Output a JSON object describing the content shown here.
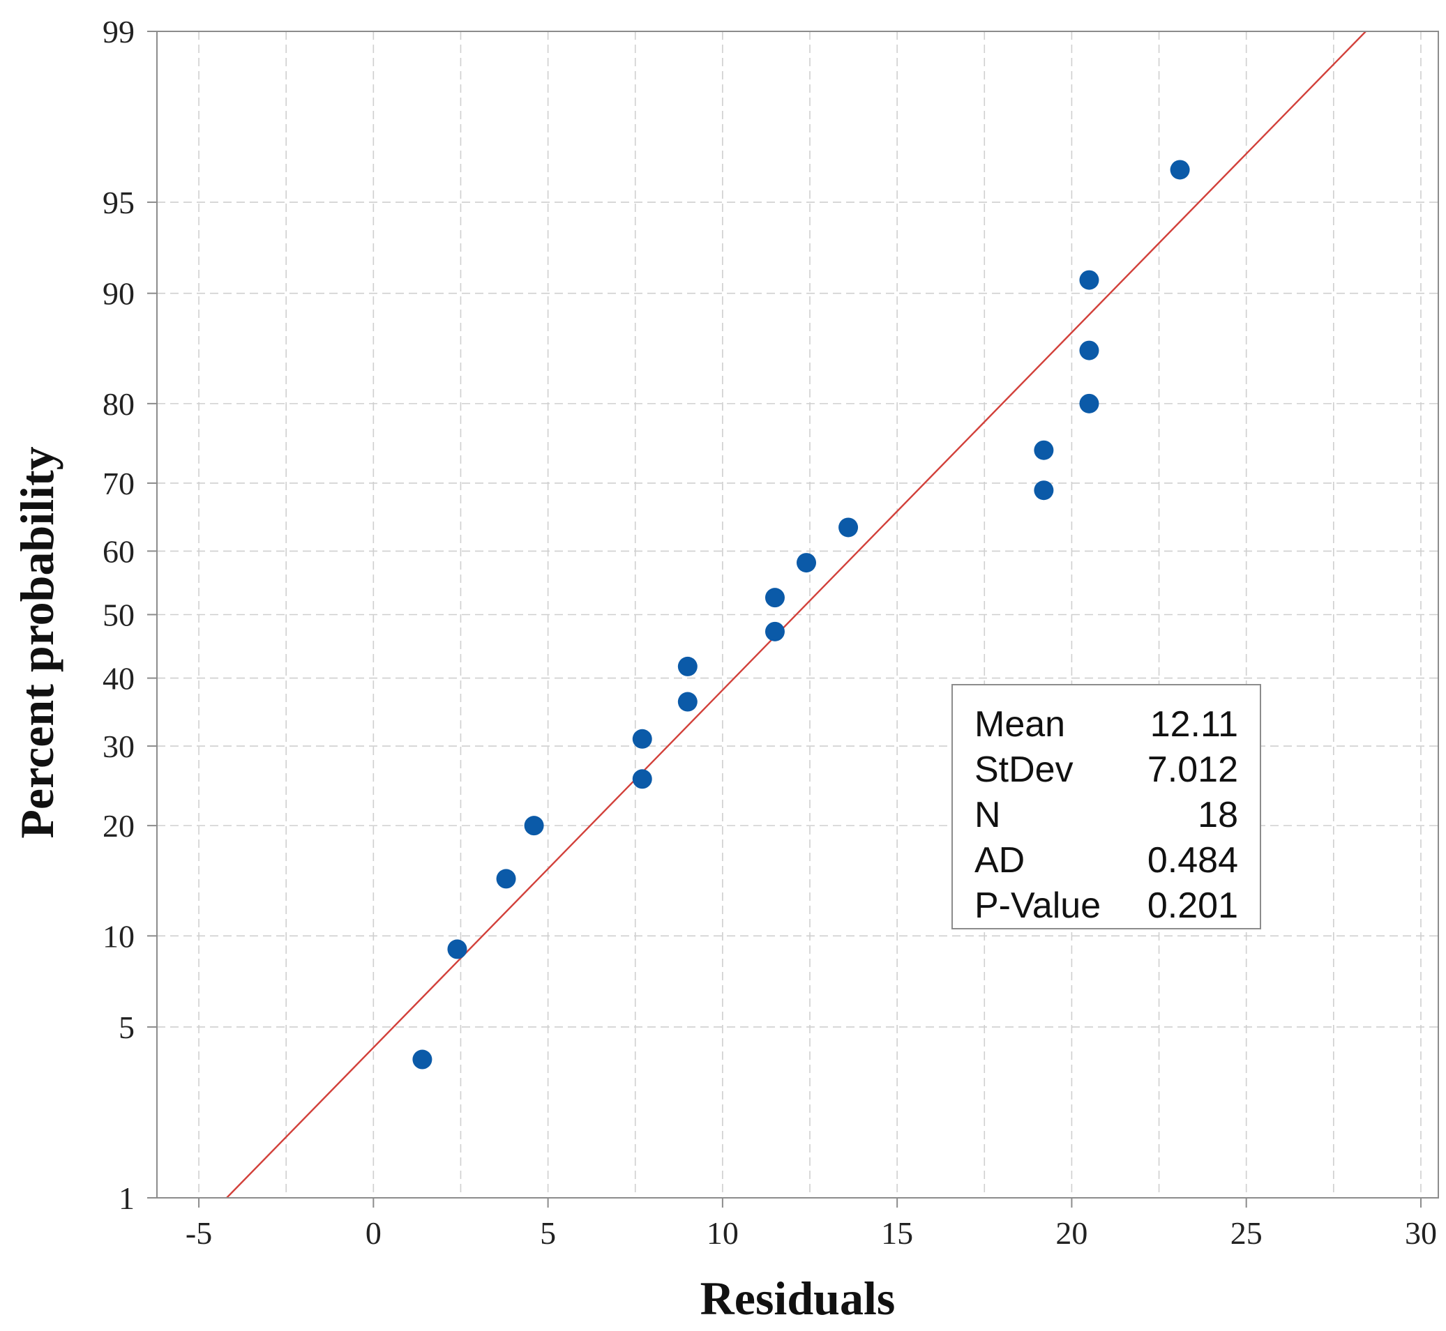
{
  "chart_data": {
    "type": "scatter",
    "scale": "normal-probability",
    "xlabel": "Residuals",
    "ylabel": "Percent probability",
    "xlim": [
      -6.2,
      30.5
    ],
    "ylim": [
      1,
      99
    ],
    "grid": true,
    "x_ticks": [
      -5,
      0,
      5,
      10,
      15,
      20,
      25,
      30
    ],
    "y_ticks": [
      1,
      5,
      10,
      20,
      30,
      40,
      50,
      60,
      70,
      80,
      90,
      95,
      99
    ],
    "points": [
      {
        "x": 1.4,
        "y": 3.8
      },
      {
        "x": 2.4,
        "y": 9.1
      },
      {
        "x": 3.8,
        "y": 14.6
      },
      {
        "x": 4.6,
        "y": 20.0
      },
      {
        "x": 7.7,
        "y": 25.6
      },
      {
        "x": 7.7,
        "y": 31.0
      },
      {
        "x": 9.0,
        "y": 36.4
      },
      {
        "x": 9.0,
        "y": 41.8
      },
      {
        "x": 11.5,
        "y": 47.3
      },
      {
        "x": 11.5,
        "y": 52.7
      },
      {
        "x": 12.4,
        "y": 58.2
      },
      {
        "x": 13.6,
        "y": 63.6
      },
      {
        "x": 19.2,
        "y": 69.0
      },
      {
        "x": 19.2,
        "y": 74.4
      },
      {
        "x": 20.5,
        "y": 80.0
      },
      {
        "x": 20.5,
        "y": 85.4
      },
      {
        "x": 20.5,
        "y": 90.9
      },
      {
        "x": 23.1,
        "y": 96.2
      }
    ],
    "fit_line": {
      "mean": 12.11,
      "stdev": 7.012
    },
    "colors": {
      "points": "#0b5aa8",
      "fit_line": "#d2403a",
      "grid": "#cfcfcf",
      "frame": "#8c8c8c"
    },
    "stats": {
      "legend_position": "center-right",
      "rows": [
        {
          "label": "Mean",
          "value": "12.11"
        },
        {
          "label": "StDev",
          "value": "7.012"
        },
        {
          "label": "N",
          "value": "18"
        },
        {
          "label": "AD",
          "value": "0.484"
        },
        {
          "label": "P-Value",
          "value": "0.201"
        }
      ]
    }
  }
}
